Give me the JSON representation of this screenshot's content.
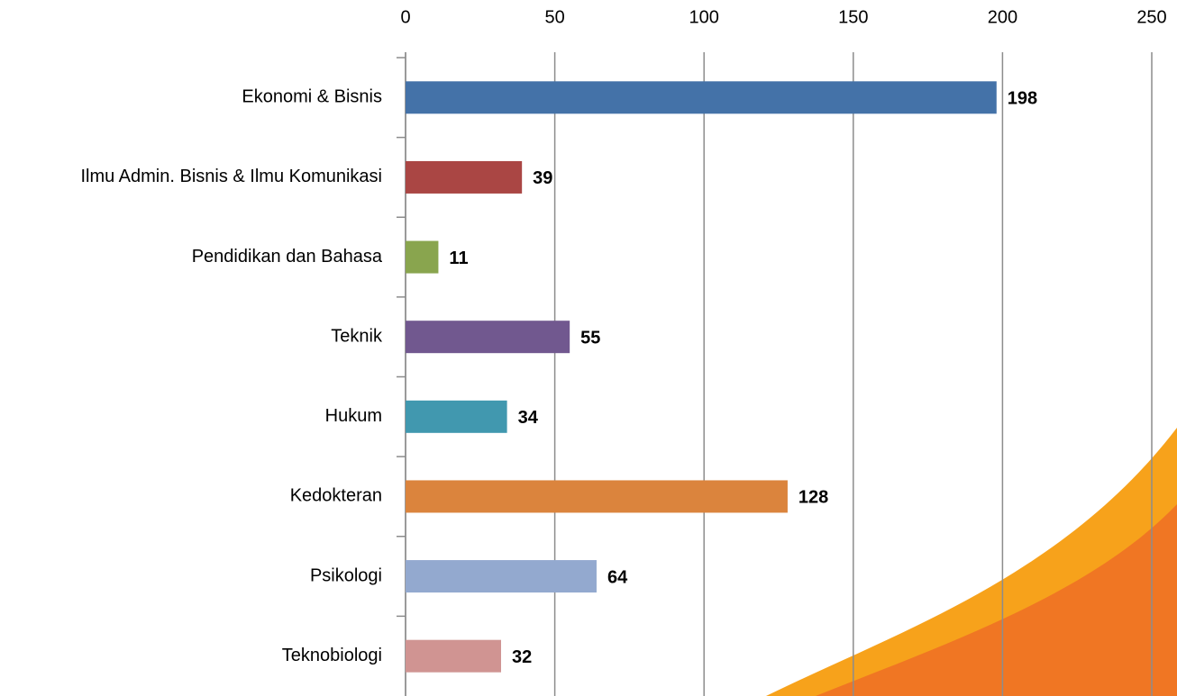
{
  "chart_data": {
    "type": "bar",
    "orientation": "horizontal",
    "categories": [
      "Ekonomi & Bisnis",
      "Ilmu Admin. Bisnis & Ilmu Komunikasi",
      "Pendidikan dan Bahasa",
      "Teknik",
      "Hukum",
      "Kedokteran",
      "Psikologi",
      "Teknobiologi"
    ],
    "values": [
      198,
      39,
      11,
      55,
      34,
      128,
      64,
      32
    ],
    "colors": [
      "#4472a8",
      "#aa4644",
      "#89a54e",
      "#71588f",
      "#4198af",
      "#db843d",
      "#93a9cf",
      "#d09492"
    ],
    "xlim": [
      0,
      250
    ],
    "xticks": [
      0,
      50,
      100,
      150,
      200,
      250
    ],
    "grid": true
  }
}
